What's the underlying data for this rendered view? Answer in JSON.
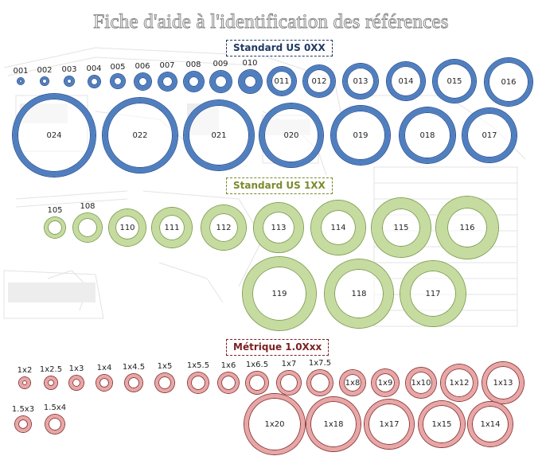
{
  "title": "Fiche d'aide à l'identification des références",
  "sections": {
    "us0": "Standard US 0XX",
    "us1": "Standard US 1XX",
    "metric": "Métrique 1.0Xxx"
  },
  "colors": {
    "us0_ring": "#4f7fbf",
    "us1_ring": "#c5dba0",
    "metric_ring": "#e8a6a6"
  },
  "us0_small": [
    "001",
    "002",
    "003",
    "004",
    "005",
    "006",
    "007",
    "008",
    "009",
    "010"
  ],
  "us0_row1": [
    "011",
    "012",
    "013",
    "014",
    "015",
    "016"
  ],
  "us0_row2": [
    "024",
    "022",
    "021",
    "020",
    "019",
    "018",
    "017"
  ],
  "us1_row1": [
    "105",
    "108",
    "110",
    "111",
    "112",
    "113",
    "114",
    "115",
    "116"
  ],
  "us1_row2": [
    "119",
    "118",
    "117"
  ],
  "metric_small": [
    "1x2",
    "1x2.5",
    "1x3",
    "1x4",
    "1x4.5",
    "1x5",
    "1x5.5",
    "1x6",
    "1x6.5",
    "1x7",
    "1x7.5"
  ],
  "metric_mid": [
    "1x8",
    "1x9",
    "1x10",
    "1x12",
    "1x13"
  ],
  "metric_side": [
    "1.5x3",
    "1.5x4"
  ],
  "metric_row2": [
    "1x20",
    "1x18",
    "1x17",
    "1x15",
    "1x14"
  ]
}
